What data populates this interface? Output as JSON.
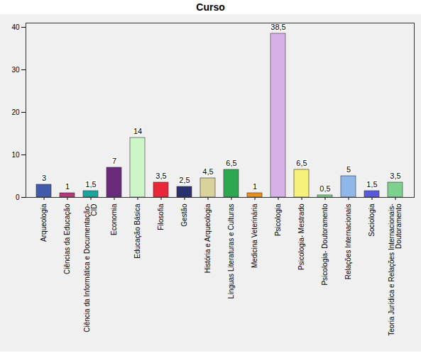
{
  "chart_data": {
    "type": "bar",
    "title": "Curso",
    "categories": [
      "Arqueologia",
      "Ciências da Educação",
      "Ciência da Informática e Documentação-CID",
      "Economia",
      "Educação Básica",
      "Filosofia",
      "Gestão",
      "História e Arqueologia",
      "Línguas Literaturas e Culturas",
      "Medicina Veterinária",
      "Psicologia",
      "Psicologia- Mestrado",
      "Psicologia- Doutoramento",
      "Relações Internacionais",
      "Sociologia",
      "Teoria Jurídica e Relações Internacionais-Doutoramento"
    ],
    "values": [
      3,
      1,
      1.5,
      7,
      14,
      3.5,
      2.5,
      4.5,
      6.5,
      1,
      38.5,
      6.5,
      0.5,
      5,
      1.5,
      3.5
    ],
    "value_labels": [
      "3",
      "1",
      "1,5",
      "7",
      "14",
      "3,5",
      "2,5",
      "4,5",
      "6,5",
      "1",
      "38,5",
      "6,5",
      "0,5",
      "5",
      "1,5",
      "3,5"
    ],
    "colors": [
      "#3f5ba9",
      "#b03a7a",
      "#1aa59a",
      "#6a2a7a",
      "#ccf5c8",
      "#e8283a",
      "#2a2f6e",
      "#d9d29a",
      "#2ea84e",
      "#e8901e",
      "#d8b0e8",
      "#f7f07a",
      "#7fd48a",
      "#8fb8e8",
      "#5a5ad8",
      "#7ed08f"
    ],
    "ylim": [
      0,
      41
    ],
    "yticks": [
      0,
      10,
      20,
      30,
      40
    ],
    "grid": false,
    "data_labels": true
  }
}
